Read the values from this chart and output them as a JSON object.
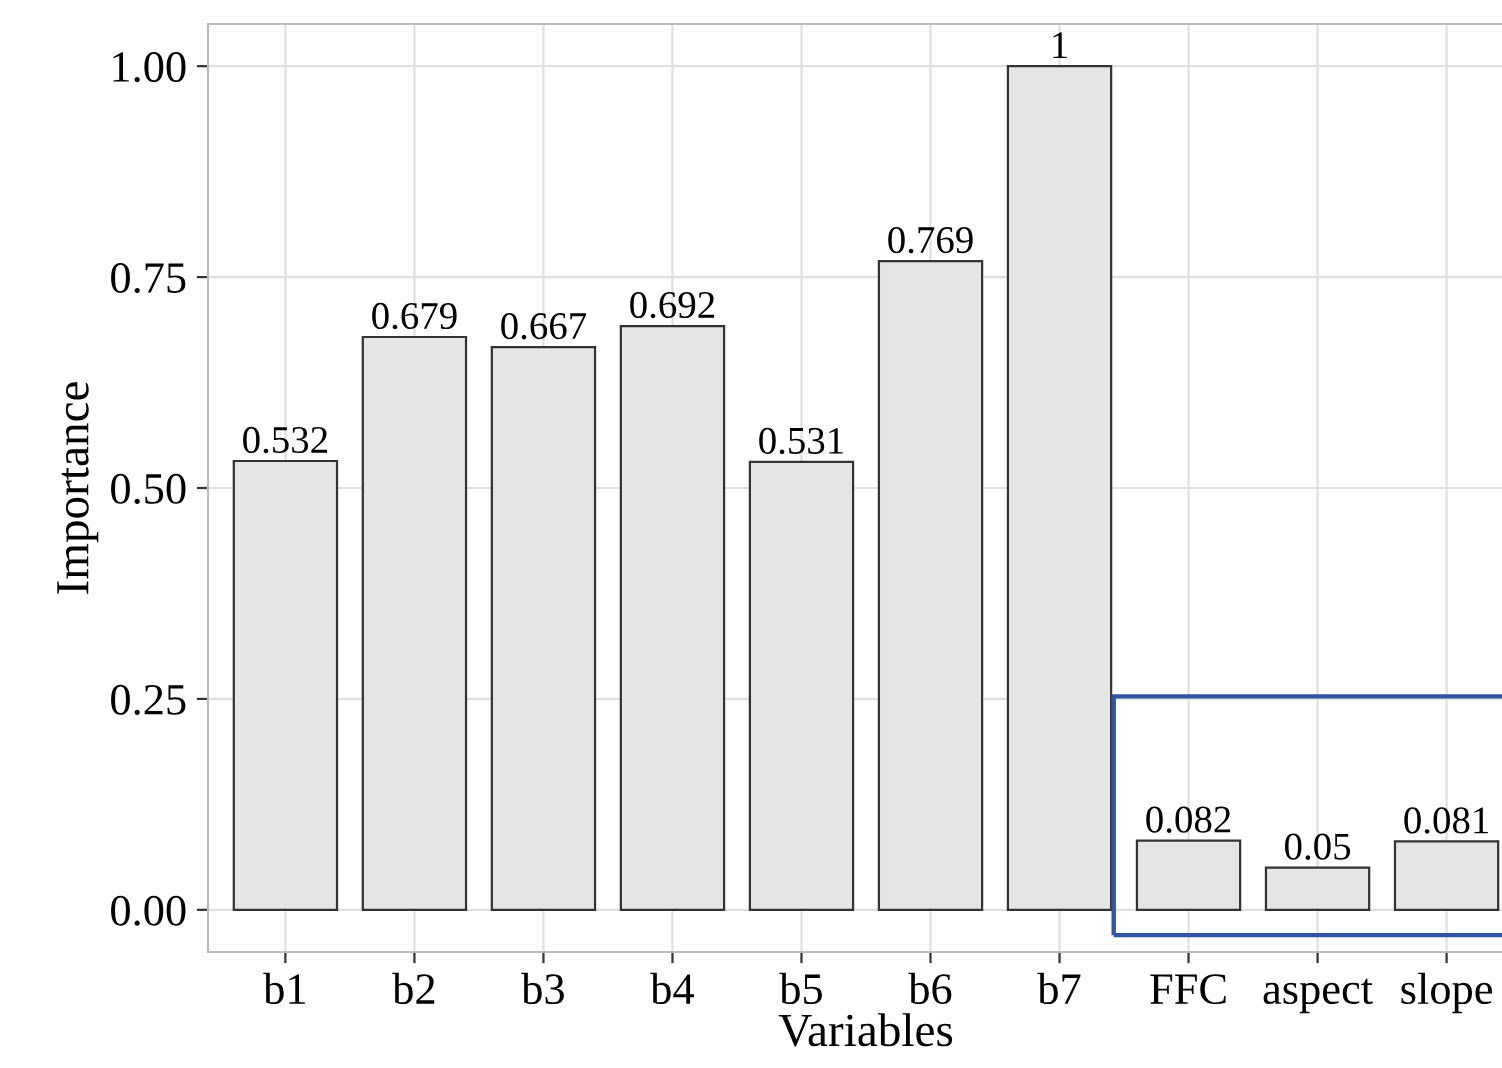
{
  "chart_data": {
    "type": "bar",
    "xlabel": "Variables",
    "ylabel": "Importance",
    "categories": [
      "b1",
      "b2",
      "b3",
      "b4",
      "b5",
      "b6",
      "b7",
      "FFC",
      "aspect",
      "slope"
    ],
    "values": [
      0.532,
      0.679,
      0.667,
      0.692,
      0.531,
      0.769,
      1,
      0.082,
      0.05,
      0.081
    ],
    "value_labels": [
      "0.532",
      "0.679",
      "0.667",
      "0.692",
      "0.531",
      "0.769",
      "1",
      "0.082",
      "0.05",
      "0.081"
    ],
    "color": "#e5e5e5",
    "ylim": [
      -0.05,
      1.05
    ],
    "yticks": [
      {
        "value": 0,
        "label": "0.00"
      },
      {
        "value": 0.25,
        "label": "0.25"
      },
      {
        "value": 0.5,
        "label": "0.50"
      },
      {
        "value": 0.75,
        "label": "0.75"
      },
      {
        "value": 1,
        "label": "1.00"
      }
    ],
    "grid": true,
    "legend": false
  }
}
